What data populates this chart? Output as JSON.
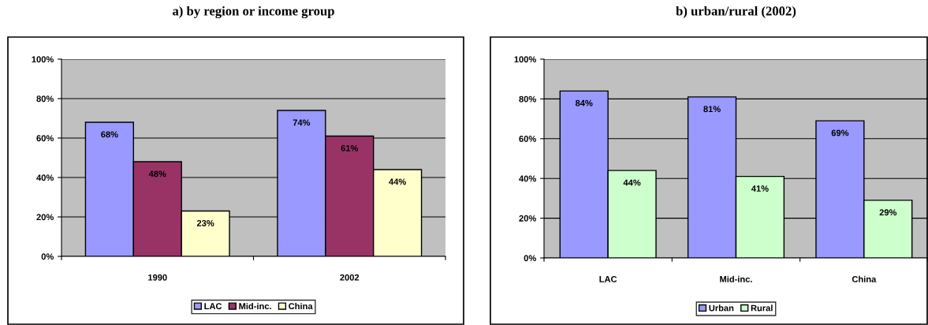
{
  "chart_data": [
    {
      "type": "bar",
      "title": "a) by region or income group",
      "categories": [
        "1990",
        "2002"
      ],
      "series": [
        {
          "name": "LAC",
          "color": "#9999ff",
          "values": [
            68,
            74
          ],
          "value_labels": [
            "68%",
            "74%"
          ]
        },
        {
          "name": "Mid-inc.",
          "color": "#993366",
          "values": [
            48,
            61
          ],
          "value_labels": [
            "48%",
            "61%"
          ]
        },
        {
          "name": "China",
          "color": "#ffffcc",
          "values": [
            23,
            44
          ],
          "value_labels": [
            "23%",
            "44%"
          ]
        }
      ],
      "ylim": [
        0,
        100
      ],
      "yticks": [
        {
          "value": 0,
          "label": "0%"
        },
        {
          "value": 20,
          "label": "20%"
        },
        {
          "value": 40,
          "label": "40%"
        },
        {
          "value": 60,
          "label": "60%"
        },
        {
          "value": 80,
          "label": "80%"
        },
        {
          "value": 100,
          "label": "100%"
        }
      ],
      "grid": "y",
      "legend": "bottom"
    },
    {
      "type": "bar",
      "title": "b) urban/rural (2002)",
      "categories": [
        "LAC",
        "Mid-inc.",
        "China"
      ],
      "series": [
        {
          "name": "Urban",
          "color": "#9999ff",
          "values": [
            84,
            81,
            69
          ],
          "value_labels": [
            "84%",
            "81%",
            "69%"
          ]
        },
        {
          "name": "Rural",
          "color": "#ccffcc",
          "values": [
            44,
            41,
            29
          ],
          "value_labels": [
            "44%",
            "41%",
            "29%"
          ]
        }
      ],
      "ylim": [
        0,
        100
      ],
      "yticks": [
        {
          "value": 0,
          "label": "0%"
        },
        {
          "value": 20,
          "label": "20%"
        },
        {
          "value": 40,
          "label": "40%"
        },
        {
          "value": 60,
          "label": "60%"
        },
        {
          "value": 80,
          "label": "80%"
        },
        {
          "value": 100,
          "label": "100%"
        }
      ],
      "grid": "y",
      "legend": "bottom"
    }
  ]
}
